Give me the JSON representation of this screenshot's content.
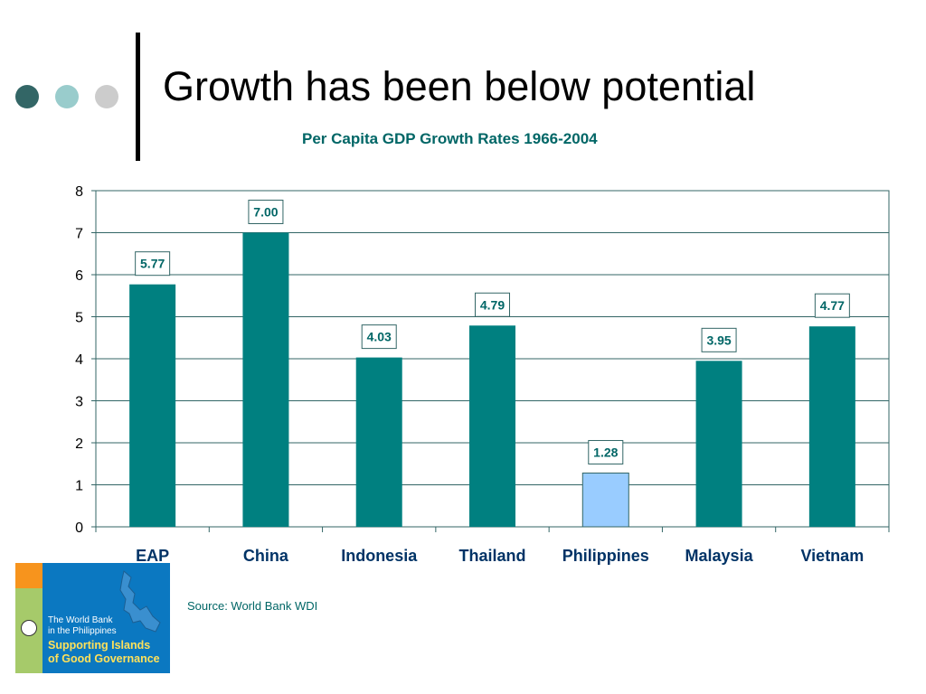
{
  "slide": {
    "title": "Growth has been below potential",
    "subtitle": "Per Capita GDP Growth Rates 1966-2004",
    "source": "Source: World Bank WDI"
  },
  "logo": {
    "line1": "The World Bank",
    "line2": "in the Philippines",
    "line3": "Supporting Islands",
    "line4": "of Good Governance"
  },
  "colors": {
    "bar": "#008080",
    "highlight_bar": "#99ccff",
    "label_text": "#006666",
    "title_text": "#006666"
  },
  "chart_data": {
    "type": "bar",
    "title": "Per Capita GDP Growth Rates 1966-2004",
    "categories": [
      "EAP",
      "China",
      "Indonesia",
      "Thailand",
      "Philippines",
      "Malaysia",
      "Vietnam"
    ],
    "values": [
      5.77,
      7.0,
      4.03,
      4.79,
      1.28,
      3.95,
      4.77
    ],
    "data_labels": [
      "5.77",
      "7.00",
      "4.03",
      "4.79",
      "1.28",
      "3.95",
      "4.77"
    ],
    "highlighted_category": "Philippines",
    "ylim": [
      0,
      8
    ],
    "yticks": [
      0,
      1,
      2,
      3,
      4,
      5,
      6,
      7,
      8
    ],
    "ytick_labels": [
      "0",
      "1",
      "2",
      "3",
      "4",
      "5",
      "6",
      "7",
      "8"
    ],
    "grid": true,
    "legend": "none"
  }
}
